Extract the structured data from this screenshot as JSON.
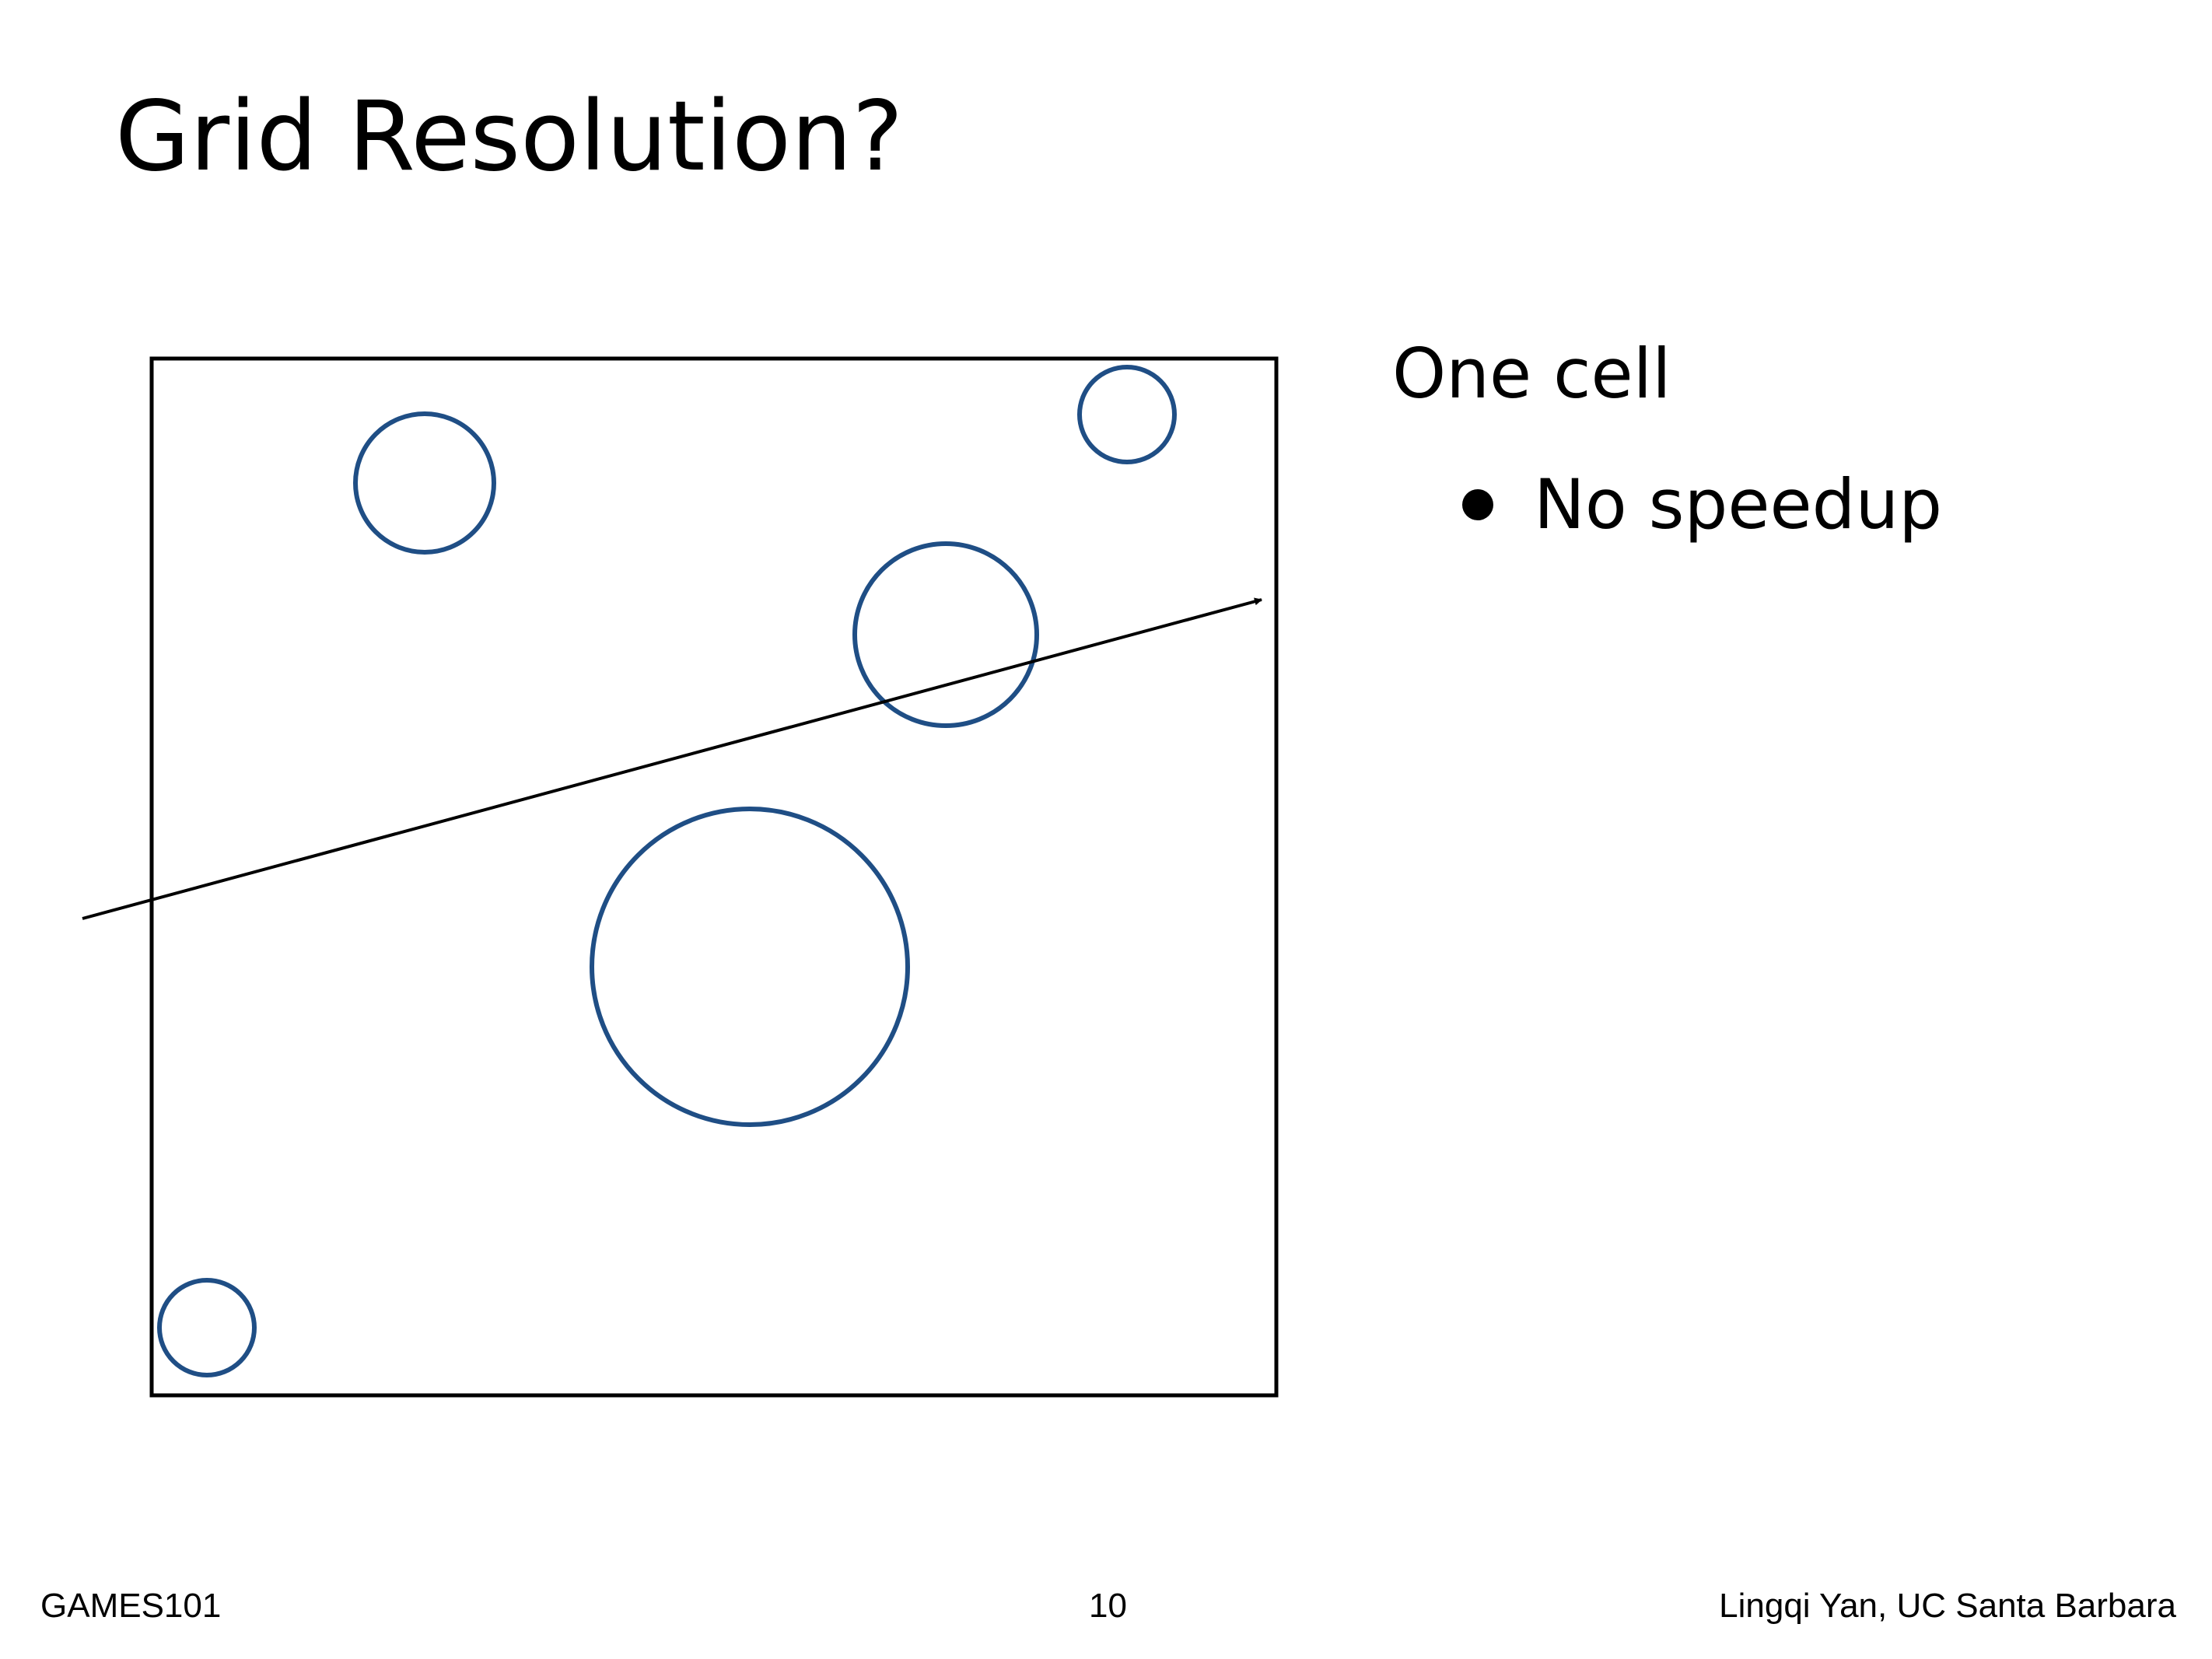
{
  "slide": {
    "title": "Grid Resolution?",
    "heading": "One cell",
    "bullets": [
      "No speedup"
    ]
  },
  "footer": {
    "left": "GAMES101",
    "page_number": "10",
    "right": "Lingqi Yan, UC Santa Barbara"
  },
  "colors": {
    "shape_outline": "#1f4e85",
    "frame": "#000000",
    "ray": "#000000"
  }
}
